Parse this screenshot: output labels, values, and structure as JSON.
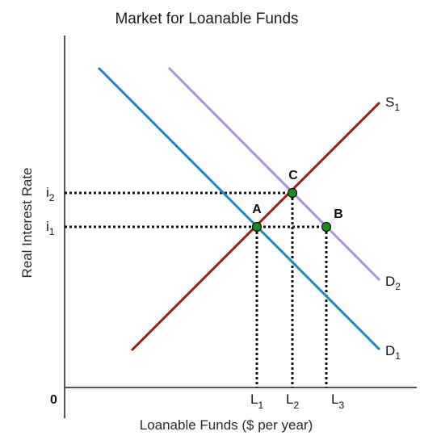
{
  "title": "Market for Loanable Funds",
  "x_axis_label": "Loanable Funds ($ per year)",
  "y_axis_label": "Real Interest Rate",
  "origin_label": "0",
  "curves": {
    "supply": {
      "name": "S",
      "sub": "1",
      "color": "#9b1c1c"
    },
    "demand1": {
      "name": "D",
      "sub": "1",
      "color": "#1f86c8"
    },
    "demand2": {
      "name": "D",
      "sub": "2",
      "color": "#a994d8"
    }
  },
  "points": {
    "a": {
      "label": "A"
    },
    "b": {
      "label": "B"
    },
    "c": {
      "label": "C"
    },
    "fill_color": "#1e8a1e"
  },
  "x_ticks": [
    {
      "name": "L",
      "sub": "1"
    },
    {
      "name": "L",
      "sub": "2"
    },
    {
      "name": "L",
      "sub": "3"
    }
  ],
  "y_ticks": [
    {
      "name": "i",
      "sub": "2"
    },
    {
      "name": "i",
      "sub": "1"
    }
  ]
}
